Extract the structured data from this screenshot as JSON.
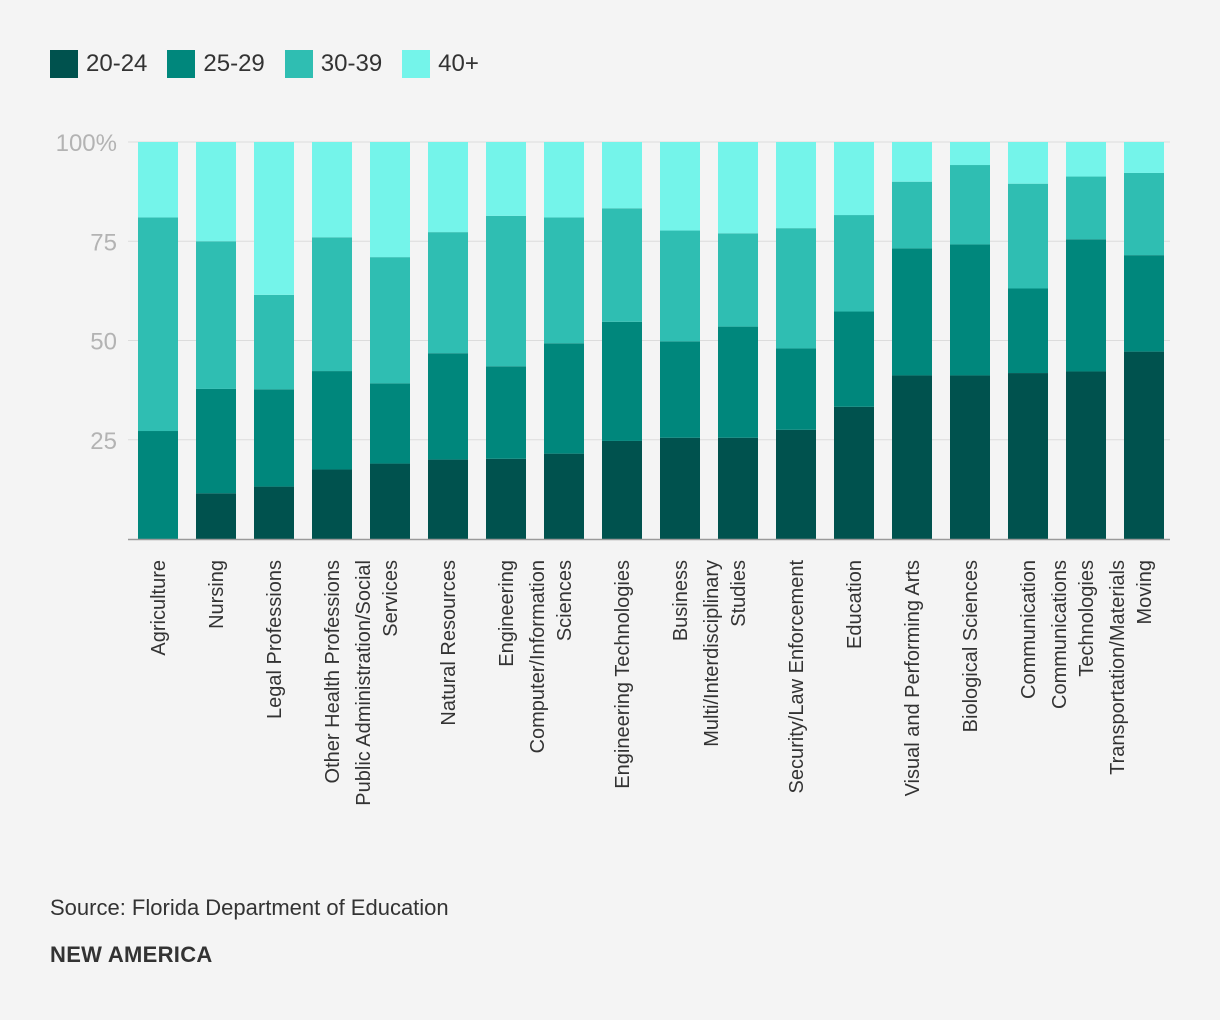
{
  "legend": [
    {
      "label": "20-24",
      "color": "#00524e"
    },
    {
      "label": "25-29",
      "color": "#00877c"
    },
    {
      "label": "30-39",
      "color": "#2fbeb2"
    },
    {
      "label": "40+",
      "color": "#74f4ea"
    }
  ],
  "chart_data": {
    "type": "bar",
    "stacked": true,
    "ylim": [
      0,
      100
    ],
    "yticks": [
      {
        "value": 100,
        "label": "100%"
      },
      {
        "value": 75,
        "label": "75"
      },
      {
        "value": 50,
        "label": "50"
      },
      {
        "value": 25,
        "label": "25"
      }
    ],
    "grid": true,
    "legend_position": "top-left",
    "categories": [
      [
        "Agriculture"
      ],
      [
        "Nursing"
      ],
      [
        "Legal Professions"
      ],
      [
        "Other Health Professions"
      ],
      [
        "Public Administration/Social",
        "Services"
      ],
      [
        "Natural Resources"
      ],
      [
        "Engineering"
      ],
      [
        "Computer/Information",
        "Sciences"
      ],
      [
        "Engineering Technologies"
      ],
      [
        "Business"
      ],
      [
        "Multi/Interdisciplinary",
        "Studies"
      ],
      [
        "Security/Law Enforcement"
      ],
      [
        "Education"
      ],
      [
        "Visual and Performing Arts"
      ],
      [
        "Biological Sciences"
      ],
      [
        "Communication"
      ],
      [
        "Communications",
        "Technologies"
      ],
      [
        "Transportation/Materials",
        "Moving"
      ]
    ],
    "series": [
      {
        "name": "20-24",
        "color": "#00524e",
        "values": [
          0,
          11.5,
          13.2,
          17.5,
          19,
          20,
          20.2,
          21.5,
          24.7,
          25.5,
          25.5,
          27.5,
          33.3,
          41.2,
          41.2,
          41.8,
          42.2,
          47.2
        ]
      },
      {
        "name": "25-29",
        "color": "#00877c",
        "values": [
          27.2,
          26.3,
          24.5,
          24.8,
          20.2,
          26.8,
          23.3,
          27.8,
          30,
          24.3,
          28,
          20.5,
          24,
          32,
          33,
          21.3,
          33.3,
          24.3
        ]
      },
      {
        "name": "30-39",
        "color": "#2fbeb2",
        "values": [
          53.8,
          37.2,
          23.8,
          33.7,
          31.8,
          30.5,
          37.9,
          31.7,
          28.6,
          27.9,
          23.5,
          30.3,
          24.3,
          16.8,
          20,
          26.4,
          15.8,
          20.7
        ]
      },
      {
        "name": "40+",
        "color": "#74f4ea",
        "values": [
          19,
          25,
          38.5,
          24,
          29,
          22.7,
          18.6,
          19,
          16.7,
          22.3,
          23,
          21.7,
          18.4,
          10,
          5.8,
          10.5,
          8.7,
          7.8
        ]
      }
    ]
  },
  "footer": {
    "source": "Source: Florida Department of Education",
    "brand": "NEW AMERICA"
  }
}
